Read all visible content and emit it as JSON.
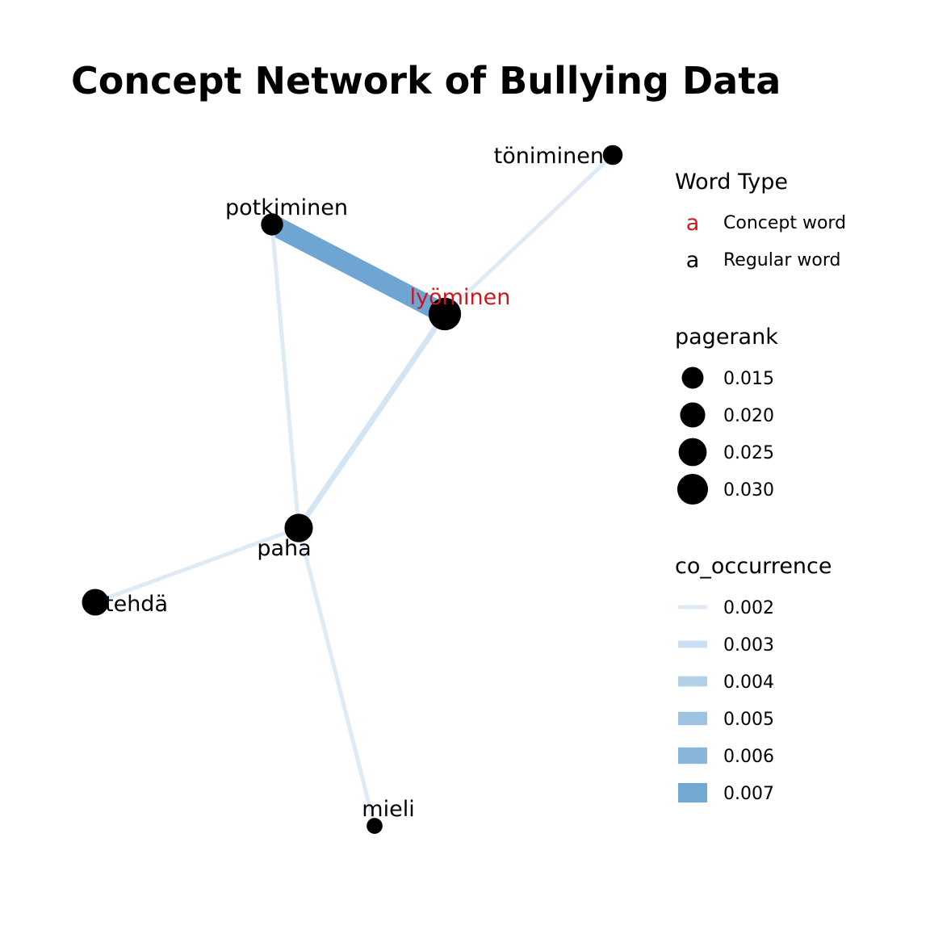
{
  "title": "Concept Network of Bullying Data",
  "colors": {
    "concept": "#cb181d",
    "regular": "#000000",
    "node": "#000000",
    "edge_low": "#deebf7",
    "edge_high": "#6fa5d2"
  },
  "nodes": [
    {
      "id": "toniminen",
      "label": "töniminen",
      "type": "regular",
      "pagerank": 0.0125
    },
    {
      "id": "potkiminen",
      "label": "potkiminen",
      "type": "regular",
      "pagerank": 0.0155
    },
    {
      "id": "lyominen",
      "label": "lyöminen",
      "type": "concept",
      "pagerank": 0.0335
    },
    {
      "id": "paha",
      "label": "paha",
      "type": "regular",
      "pagerank": 0.0255
    },
    {
      "id": "tehda",
      "label": "tehdä",
      "type": "regular",
      "pagerank": 0.0225
    },
    {
      "id": "mieli",
      "label": "mieli",
      "type": "regular",
      "pagerank": 0.008
    }
  ],
  "edges": [
    {
      "source": "potkiminen",
      "target": "lyominen",
      "co_occurrence": 0.0072
    },
    {
      "source": "toniminen",
      "target": "lyominen",
      "co_occurrence": 0.002
    },
    {
      "source": "lyominen",
      "target": "paha",
      "co_occurrence": 0.0025
    },
    {
      "source": "potkiminen",
      "target": "paha",
      "co_occurrence": 0.002
    },
    {
      "source": "tehda",
      "target": "paha",
      "co_occurrence": 0.002
    },
    {
      "source": "paha",
      "target": "mieli",
      "co_occurrence": 0.002
    }
  ],
  "legend": {
    "word_type": {
      "title": "Word Type",
      "glyph": "a",
      "items": [
        {
          "label": "Concept word",
          "type": "concept"
        },
        {
          "label": "Regular word",
          "type": "regular"
        }
      ]
    },
    "pagerank": {
      "title": "pagerank",
      "items": [
        {
          "label": "0.015",
          "value": 0.015
        },
        {
          "label": "0.020",
          "value": 0.02
        },
        {
          "label": "0.025",
          "value": 0.025
        },
        {
          "label": "0.030",
          "value": 0.03
        }
      ]
    },
    "co_occurrence": {
      "title": "co_occurrence",
      "items": [
        {
          "label": "0.002",
          "value": 0.002
        },
        {
          "label": "0.003",
          "value": 0.003
        },
        {
          "label": "0.004",
          "value": 0.004
        },
        {
          "label": "0.005",
          "value": 0.005
        },
        {
          "label": "0.006",
          "value": 0.006
        },
        {
          "label": "0.007",
          "value": 0.007
        }
      ]
    }
  }
}
